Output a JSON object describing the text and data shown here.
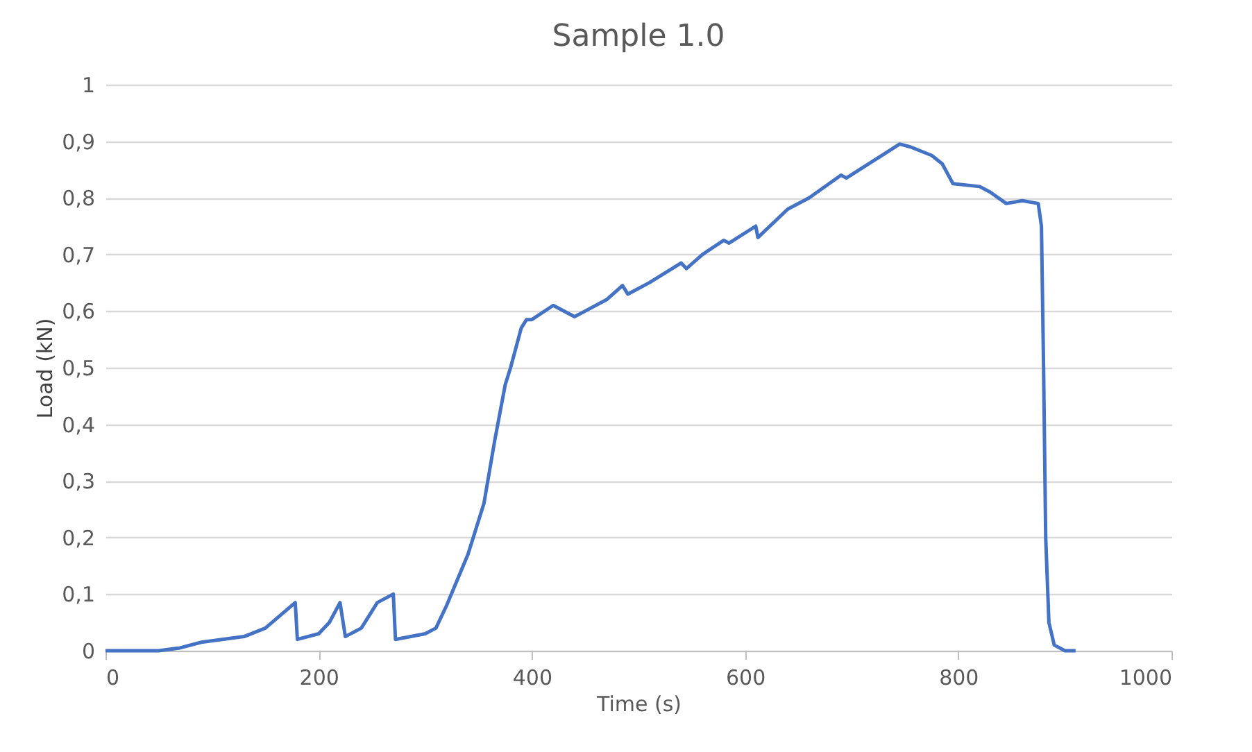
{
  "chart_data": {
    "type": "line",
    "title": "Sample 1.0",
    "xlabel": "Time (s)",
    "ylabel": "Load (kN)",
    "xlim": [
      0,
      1000
    ],
    "xticks": [
      0,
      200,
      400,
      600,
      800,
      1000
    ],
    "ylim": [
      0,
      1
    ],
    "yticks": [
      0,
      {
        "value": 0.1,
        "label": "0,1"
      },
      {
        "value": 0.2,
        "label": "0,2"
      },
      {
        "value": 0.3,
        "label": "0,3"
      },
      {
        "value": 0.4,
        "label": "0,4"
      },
      {
        "value": 0.5,
        "label": "0,5"
      },
      {
        "value": 0.6,
        "label": "0,6"
      },
      {
        "value": 0.7,
        "label": "0,7"
      },
      {
        "value": 0.8,
        "label": "0,8"
      },
      {
        "value": 0.9,
        "label": "0,9"
      },
      1
    ],
    "grid": "y",
    "marker": "none",
    "line_style": "solid",
    "series": [
      {
        "color": "#4472c4",
        "x": [
          0,
          50,
          70,
          90,
          130,
          150,
          178,
          180,
          200,
          210,
          220,
          225,
          240,
          255,
          270,
          272,
          300,
          310,
          320,
          340,
          355,
          365,
          375,
          380,
          390,
          395,
          400,
          420,
          425,
          440,
          450,
          470,
          485,
          490,
          510,
          540,
          545,
          560,
          580,
          585,
          610,
          612,
          640,
          660,
          690,
          695,
          720,
          745,
          755,
          775,
          785,
          795,
          820,
          830,
          845,
          860,
          875,
          878,
          880,
          882,
          885,
          890,
          900,
          910
        ],
        "values": [
          0,
          0,
          0.005,
          0.015,
          0.025,
          0.04,
          0.085,
          0.02,
          0.03,
          0.05,
          0.085,
          0.025,
          0.04,
          0.085,
          0.1,
          0.02,
          0.03,
          0.04,
          0.08,
          0.17,
          0.26,
          0.37,
          0.47,
          0.5,
          0.57,
          0.585,
          0.585,
          0.61,
          0.605,
          0.59,
          0.6,
          0.62,
          0.645,
          0.63,
          0.65,
          0.685,
          0.675,
          0.7,
          0.725,
          0.72,
          0.75,
          0.73,
          0.78,
          0.8,
          0.84,
          0.835,
          0.865,
          0.895,
          0.89,
          0.875,
          0.86,
          0.825,
          0.82,
          0.81,
          0.79,
          0.795,
          0.79,
          0.75,
          0.5,
          0.2,
          0.05,
          0.01,
          0,
          0
        ]
      }
    ]
  }
}
